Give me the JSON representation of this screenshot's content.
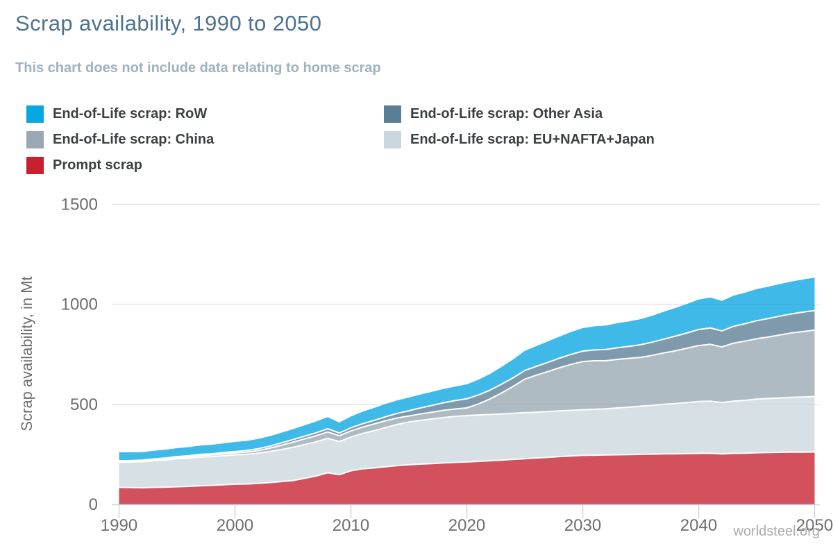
{
  "chart_data": {
    "type": "area",
    "stacked": true,
    "title": "Scrap availability, 1990 to 2050",
    "subtitle": "This chart does not include data relating to home scrap",
    "ylabel": "Scrap availability, in Mt",
    "xlim": [
      1990,
      2050
    ],
    "ylim": [
      0,
      1500
    ],
    "yticks": [
      0,
      500,
      1000,
      1500
    ],
    "xticks": [
      1990,
      2000,
      2010,
      2020,
      2030,
      2040,
      2050
    ],
    "grid": "horizontal",
    "legend_position": "top",
    "fill_opacity": 0.78,
    "boundary_color": "#FFFFFF",
    "years": [
      1990,
      1991,
      1992,
      1993,
      1994,
      1995,
      1996,
      1997,
      1998,
      1999,
      2000,
      2001,
      2002,
      2003,
      2004,
      2005,
      2006,
      2007,
      2008,
      2009,
      2010,
      2011,
      2012,
      2013,
      2014,
      2015,
      2016,
      2017,
      2018,
      2019,
      2020,
      2021,
      2022,
      2023,
      2024,
      2025,
      2026,
      2027,
      2028,
      2029,
      2030,
      2031,
      2032,
      2033,
      2034,
      2035,
      2036,
      2037,
      2038,
      2039,
      2040,
      2041,
      2042,
      2043,
      2044,
      2045,
      2046,
      2047,
      2048,
      2049,
      2050
    ],
    "series": [
      {
        "name": "Prompt scrap",
        "color": "#C7202F",
        "values": [
          85,
          84,
          83,
          85,
          86,
          88,
          90,
          93,
          95,
          98,
          101,
          102,
          105,
          109,
          114,
          119,
          130,
          142,
          158,
          148,
          168,
          178,
          182,
          188,
          194,
          198,
          201,
          204,
          207,
          210,
          212,
          215,
          218,
          221,
          225,
          228,
          232,
          235,
          239,
          242,
          245,
          246,
          247,
          248,
          249,
          250,
          251,
          252,
          253,
          254,
          255,
          256,
          252,
          255,
          256,
          258,
          259,
          260,
          261,
          261,
          262
        ]
      },
      {
        "name": "End-of-Life scrap: EU+NAFTA+Japan",
        "color": "#CAD7DE",
        "values": [
          126,
          128,
          130,
          133,
          136,
          140,
          141,
          143,
          144,
          145,
          146,
          148,
          151,
          155,
          160,
          166,
          169,
          171,
          172,
          166,
          168,
          176,
          186,
          196,
          206,
          214,
          219,
          223,
          227,
          230,
          232,
          232,
          231,
          231,
          230,
          230,
          229,
          229,
          228,
          228,
          228,
          229,
          231,
          234,
          237,
          241,
          244,
          248,
          251,
          255,
          259,
          260,
          257,
          261,
          264,
          268,
          270,
          272,
          274,
          276,
          277
        ]
      },
      {
        "name": "End-of-Life scrap: China",
        "color": "#99A8B2",
        "values": [
          4,
          4,
          5,
          5,
          6,
          6,
          7,
          8,
          8,
          9,
          10,
          11,
          13,
          17,
          21,
          26,
          28,
          30,
          32,
          29,
          31,
          32,
          34,
          34,
          32,
          30,
          32,
          34,
          36,
          37,
          38,
          55,
          78,
          105,
          135,
          168,
          185,
          200,
          216,
          230,
          241,
          243,
          240,
          243,
          244,
          244,
          250,
          257,
          264,
          272,
          280,
          284,
          278,
          290,
          296,
          302,
          308,
          315,
          322,
          327,
          332
        ]
      },
      {
        "name": "End-of-Life scrap: Other Asia",
        "color": "#5A7E95",
        "values": [
          3,
          3,
          3,
          4,
          4,
          5,
          5,
          6,
          6,
          7,
          7,
          8,
          9,
          10,
          12,
          13,
          14,
          15,
          16,
          14,
          16,
          17,
          18,
          20,
          23,
          26,
          30,
          34,
          38,
          42,
          46,
          45,
          44,
          44,
          43,
          43,
          44,
          46,
          48,
          50,
          52,
          54,
          56,
          58,
          60,
          63,
          66,
          69,
          73,
          76,
          80,
          82,
          80,
          84,
          87,
          90,
          92,
          94,
          95,
          97,
          98
        ]
      },
      {
        "name": "End-of-Life scrap: RoW",
        "color": "#09A7E1",
        "values": [
          42,
          41,
          40,
          41,
          41,
          42,
          43,
          44,
          45,
          46,
          48,
          48,
          49,
          50,
          51,
          52,
          54,
          56,
          58,
          52,
          56,
          60,
          62,
          64,
          65,
          66,
          67,
          68,
          69,
          70,
          72,
          76,
          81,
          86,
          92,
          98,
          101,
          105,
          108,
          112,
          115,
          118,
          120,
          123,
          125,
          128,
          132,
          137,
          141,
          145,
          150,
          152,
          150,
          153,
          155,
          158,
          159,
          160,
          162,
          163,
          164
        ]
      }
    ]
  },
  "legend": {
    "columns": [
      [
        {
          "label": "End-of-Life scrap: RoW",
          "color": "#09A7E1"
        },
        {
          "label": "End-of-Life scrap: China",
          "color": "#99A8B2"
        },
        {
          "label": "Prompt scrap",
          "color": "#C7202F"
        }
      ],
      [
        {
          "label": "End-of-Life scrap: Other Asia",
          "color": "#5A7E95"
        },
        {
          "label": "End-of-Life scrap: EU+NAFTA+Japan",
          "color": "#CAD7DE"
        }
      ]
    ]
  },
  "footer": {
    "credit": "worldsteel.org"
  },
  "theme": {
    "title_color": "#4D7290",
    "subtitle_color": "#9FB2BF",
    "legend_text_color": "#3C4043",
    "tick_label_color": "#6E6E6E",
    "grid_color": "#E6E6E6",
    "axis_line_color": "#C9D4EA",
    "credit_color": "#ABABAB",
    "background": "#FFFFFF"
  }
}
